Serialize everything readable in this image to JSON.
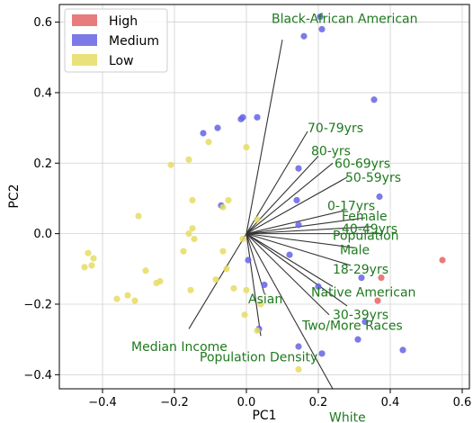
{
  "chart_data": {
    "type": "scatter",
    "title": "",
    "xlabel": "PC1",
    "ylabel": "PC2",
    "xlim": [
      -0.52,
      0.62
    ],
    "ylim": [
      -0.44,
      0.65
    ],
    "xticks": [
      -0.4,
      -0.2,
      0.0,
      0.2,
      0.4,
      0.6
    ],
    "yticks": [
      -0.4,
      -0.2,
      0.0,
      0.2,
      0.4,
      0.6
    ],
    "xtick_labels": [
      "−0.4",
      "−0.2",
      "0.0",
      "0.2",
      "0.4",
      "0.6"
    ],
    "ytick_labels": [
      "−0.4",
      "−0.2",
      "0.0",
      "0.2",
      "0.4",
      "0.6"
    ],
    "grid": true,
    "legend_position": "top-left",
    "series": [
      {
        "name": "High",
        "color": "#e46464",
        "points": [
          [
            0.545,
            -0.075
          ],
          [
            0.375,
            -0.125
          ],
          [
            0.365,
            -0.19
          ]
        ]
      },
      {
        "name": "Medium",
        "color": "#6464e4",
        "points": [
          [
            0.205,
            0.615
          ],
          [
            0.16,
            0.56
          ],
          [
            0.21,
            0.58
          ],
          [
            0.355,
            0.38
          ],
          [
            -0.12,
            0.285
          ],
          [
            -0.08,
            0.3
          ],
          [
            -0.015,
            0.325
          ],
          [
            -0.01,
            0.33
          ],
          [
            0.03,
            0.33
          ],
          [
            0.145,
            0.185
          ],
          [
            -0.07,
            0.08
          ],
          [
            0.37,
            0.105
          ],
          [
            0.14,
            0.095
          ],
          [
            0.145,
            0.025
          ],
          [
            0.005,
            -0.075
          ],
          [
            0.12,
            -0.06
          ],
          [
            0.05,
            -0.145
          ],
          [
            0.2,
            -0.15
          ],
          [
            0.32,
            -0.125
          ],
          [
            0.31,
            -0.3
          ],
          [
            0.33,
            -0.25
          ],
          [
            0.035,
            -0.27
          ],
          [
            0.145,
            -0.32
          ],
          [
            0.21,
            -0.34
          ],
          [
            0.435,
            -0.33
          ]
        ]
      },
      {
        "name": "Low",
        "color": "#e6dc64",
        "points": [
          [
            -0.105,
            0.26
          ],
          [
            -0.21,
            0.195
          ],
          [
            -0.16,
            0.21
          ],
          [
            0.0,
            0.245
          ],
          [
            -0.3,
            0.05
          ],
          [
            -0.15,
            0.095
          ],
          [
            -0.05,
            0.095
          ],
          [
            -0.065,
            0.075
          ],
          [
            -0.15,
            0.015
          ],
          [
            -0.16,
            0.0
          ],
          [
            -0.145,
            -0.015
          ],
          [
            0.03,
            0.04
          ],
          [
            -0.01,
            -0.015
          ],
          [
            -0.44,
            -0.055
          ],
          [
            -0.425,
            -0.07
          ],
          [
            -0.45,
            -0.095
          ],
          [
            -0.43,
            -0.09
          ],
          [
            -0.175,
            -0.05
          ],
          [
            -0.065,
            -0.05
          ],
          [
            -0.28,
            -0.105
          ],
          [
            -0.24,
            -0.135
          ],
          [
            -0.25,
            -0.14
          ],
          [
            -0.055,
            -0.1
          ],
          [
            -0.085,
            -0.13
          ],
          [
            -0.155,
            -0.16
          ],
          [
            -0.035,
            -0.155
          ],
          [
            -0.33,
            -0.175
          ],
          [
            -0.36,
            -0.185
          ],
          [
            -0.31,
            -0.19
          ],
          [
            0.0,
            -0.16
          ],
          [
            0.04,
            -0.2
          ],
          [
            -0.005,
            -0.23
          ],
          [
            0.03,
            -0.275
          ],
          [
            0.145,
            -0.385
          ]
        ]
      }
    ],
    "loadings": [
      {
        "label": "Black-African American",
        "tip": [
          0.1,
          0.55
        ],
        "text_at": [
          0.07,
          0.61
        ]
      },
      {
        "label": "70-79yrs",
        "tip": [
          0.17,
          0.29
        ],
        "text_at": [
          0.17,
          0.3
        ]
      },
      {
        "label": "80-yrs",
        "tip": [
          0.2,
          0.22
        ],
        "text_at": [
          0.18,
          0.235
        ]
      },
      {
        "label": "60-69yrs",
        "tip": [
          0.24,
          0.2
        ],
        "text_at": [
          0.245,
          0.2
        ]
      },
      {
        "label": "50-59yrs",
        "tip": [
          0.28,
          0.16
        ],
        "text_at": [
          0.275,
          0.16
        ]
      },
      {
        "label": "0-17yrs",
        "tip": [
          0.27,
          0.065
        ],
        "text_at": [
          0.225,
          0.08
        ]
      },
      {
        "label": "Female",
        "tip": [
          0.33,
          0.045
        ],
        "text_at": [
          0.265,
          0.05
        ]
      },
      {
        "label": "40-49yrs",
        "tip": [
          0.35,
          0.02
        ],
        "text_at": [
          0.265,
          0.015
        ]
      },
      {
        "label": "Population",
        "tip": [
          0.38,
          0.0
        ],
        "text_at": [
          0.24,
          -0.005
        ]
      },
      {
        "label": "Male",
        "tip": [
          0.3,
          -0.04
        ],
        "text_at": [
          0.26,
          -0.045
        ]
      },
      {
        "label": "18-29yrs",
        "tip": [
          0.29,
          -0.09
        ],
        "text_at": [
          0.24,
          -0.1
        ]
      },
      {
        "label": "Native American",
        "tip": [
          0.24,
          -0.15
        ],
        "text_at": [
          0.18,
          -0.165
        ]
      },
      {
        "label": "30-39yrs",
        "tip": [
          0.28,
          -0.205
        ],
        "text_at": [
          0.24,
          -0.23
        ]
      },
      {
        "label": "Two/More Races",
        "tip": [
          0.23,
          -0.23
        ],
        "text_at": [
          0.155,
          -0.26
        ]
      },
      {
        "label": "Asian",
        "tip": [
          0.05,
          -0.17
        ],
        "text_at": [
          0.005,
          -0.185
        ]
      },
      {
        "label": "Median Income",
        "tip": [
          -0.16,
          -0.27
        ],
        "text_at": [
          -0.32,
          -0.32
        ]
      },
      {
        "label": "Population Density",
        "tip": [
          0.04,
          -0.29
        ],
        "text_at": [
          -0.13,
          -0.35
        ]
      },
      {
        "label": "White",
        "tip": [
          0.24,
          -0.44
        ],
        "text_at": [
          0.23,
          -0.52
        ]
      }
    ],
    "colors": {
      "loading_text": "#1e7a1e",
      "loading_line": "#333333",
      "grid": "#d0d0d0",
      "axis": "#000000"
    }
  }
}
